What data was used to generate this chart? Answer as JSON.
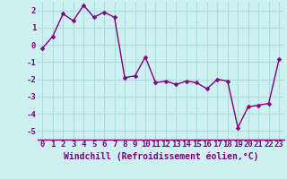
{
  "x": [
    0,
    1,
    2,
    3,
    4,
    5,
    6,
    7,
    8,
    9,
    10,
    11,
    12,
    13,
    14,
    15,
    16,
    17,
    18,
    19,
    20,
    21,
    22,
    23
  ],
  "y": [
    -0.2,
    0.5,
    1.8,
    1.4,
    2.3,
    1.6,
    1.9,
    1.6,
    -1.9,
    -1.8,
    -0.7,
    -2.2,
    -2.1,
    -2.3,
    -2.1,
    -2.2,
    -2.55,
    -2.0,
    -2.1,
    -4.8,
    -3.6,
    -3.5,
    -3.4,
    -0.85
  ],
  "line_color": "#800080",
  "marker_color": "#800080",
  "bg_color": "#cdf0f0",
  "grid_color": "#aadddd",
  "xlabel": "Windchill (Refroidissement éolien,°C)",
  "ylim": [
    -5.5,
    2.5
  ],
  "xlim": [
    -0.5,
    23.5
  ],
  "yticks": [
    -5,
    -4,
    -3,
    -2,
    -1,
    0,
    1,
    2
  ],
  "xticks": [
    0,
    1,
    2,
    3,
    4,
    5,
    6,
    7,
    8,
    9,
    10,
    11,
    12,
    13,
    14,
    15,
    16,
    17,
    18,
    19,
    20,
    21,
    22,
    23
  ],
  "tick_color": "#800080",
  "label_color": "#800080",
  "tick_fontsize": 6.5,
  "xlabel_fontsize": 7,
  "line_width": 1.0,
  "marker_size": 2.5
}
